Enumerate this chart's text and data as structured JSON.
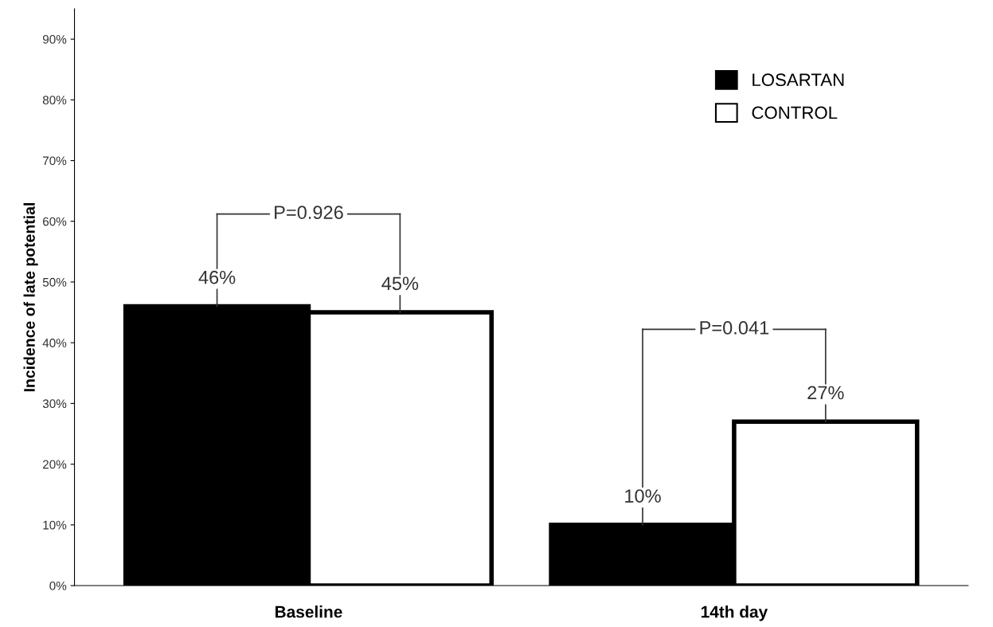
{
  "chart_data": {
    "type": "bar",
    "ylabel": "Incidence of late potential",
    "categories": [
      "Baseline",
      "14th day"
    ],
    "series": [
      {
        "name": "LOSARTAN",
        "color": "#000000",
        "values": [
          46,
          10
        ],
        "value_labels": [
          "46%",
          "10%"
        ]
      },
      {
        "name": "CONTROL",
        "color": "#ffffff",
        "values": [
          45,
          27
        ],
        "value_labels": [
          "45%",
          "27%"
        ]
      }
    ],
    "ylim": [
      0,
      95
    ],
    "yticks": [
      {
        "value": 0,
        "label": "0%"
      },
      {
        "value": 10,
        "label": "10%"
      },
      {
        "value": 20,
        "label": "20%"
      },
      {
        "value": 30,
        "label": "30%"
      },
      {
        "value": 40,
        "label": "40%"
      },
      {
        "value": 50,
        "label": "50%"
      },
      {
        "value": 60,
        "label": "60%"
      },
      {
        "value": 70,
        "label": "70%"
      },
      {
        "value": 80,
        "label": "80%"
      },
      {
        "value": 90,
        "label": "90%"
      }
    ],
    "annotations": [
      "P=0.926",
      "P=0.041"
    ],
    "legend": "top right",
    "grid": false
  }
}
